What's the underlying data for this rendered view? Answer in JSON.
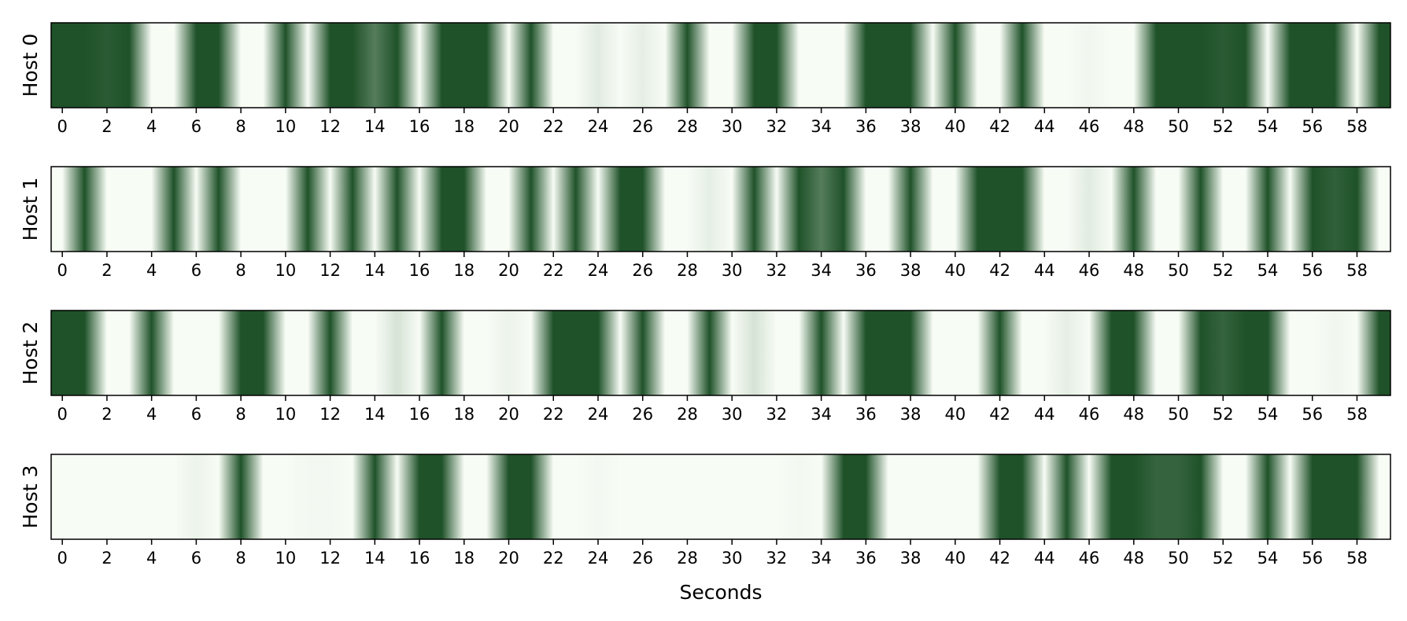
{
  "chart_data": {
    "type": "heatmap",
    "xlabel": "Seconds",
    "xlim": [
      -0.5,
      59.5
    ],
    "xticks": [
      0,
      2,
      4,
      6,
      8,
      10,
      12,
      14,
      16,
      18,
      20,
      22,
      24,
      26,
      28,
      30,
      32,
      34,
      36,
      38,
      40,
      42,
      44,
      46,
      48,
      50,
      52,
      54,
      56,
      58
    ],
    "colormap": {
      "low": "#f7fcf5",
      "high": "#1f5229"
    },
    "value_range": [
      0,
      1
    ],
    "panels": [
      {
        "ylabel": "Host 0",
        "values": [
          1,
          1,
          0.95,
          1,
          0,
          0,
          1,
          1,
          0,
          0,
          1,
          0,
          1,
          1,
          0.75,
          1,
          0,
          1,
          1,
          1,
          0,
          1,
          0,
          0,
          0.1,
          0,
          0.08,
          0,
          1,
          0,
          0,
          1,
          1,
          0,
          0,
          0,
          1,
          1,
          1,
          0,
          1,
          0,
          0,
          1,
          0,
          0,
          0.03,
          0,
          0,
          1,
          1,
          1,
          0.95,
          1,
          0,
          1,
          1,
          1,
          0,
          1
        ]
      },
      {
        "ylabel": "Host 1",
        "values": [
          0,
          1,
          0,
          0,
          0,
          1,
          0,
          1,
          0,
          0,
          0,
          1,
          0,
          1,
          0,
          1,
          0,
          1,
          1,
          0,
          0,
          1,
          0,
          1,
          0,
          1,
          1,
          0,
          0,
          0.08,
          0,
          1,
          0,
          1,
          0.75,
          1,
          0,
          0,
          1,
          0,
          0,
          1,
          1,
          1,
          0,
          0,
          0.1,
          0,
          1,
          0,
          0,
          1,
          0,
          0,
          1,
          0,
          1,
          0.92,
          1,
          0
        ]
      },
      {
        "ylabel": "Host 2",
        "values": [
          1,
          1,
          0,
          0,
          1,
          0,
          0,
          0,
          1,
          1,
          0,
          0,
          1,
          0,
          0,
          0.15,
          0,
          1,
          0,
          0,
          0.05,
          0,
          1,
          1,
          1,
          0,
          1,
          0,
          0,
          1,
          0,
          0.15,
          0,
          0,
          1,
          0,
          1,
          1,
          1,
          0,
          0,
          0,
          1,
          0,
          0,
          0.08,
          0,
          1,
          1,
          0,
          0,
          1,
          0.9,
          1,
          1,
          0,
          0,
          0.03,
          0,
          1
        ]
      },
      {
        "ylabel": "Host 3",
        "values": [
          0,
          0,
          0,
          0,
          0,
          0,
          0.05,
          0,
          1,
          0,
          0,
          0.02,
          0.02,
          0,
          1,
          0,
          1,
          1,
          0,
          0,
          1,
          1,
          0,
          0,
          0.02,
          0,
          0,
          0,
          0,
          0,
          0,
          0,
          0,
          0.02,
          0,
          1,
          1,
          0,
          0,
          0,
          0,
          0,
          1,
          1,
          0,
          1,
          0,
          1,
          1,
          0.9,
          0.9,
          1,
          0,
          0,
          1,
          0,
          1,
          1,
          1,
          0
        ]
      }
    ]
  }
}
